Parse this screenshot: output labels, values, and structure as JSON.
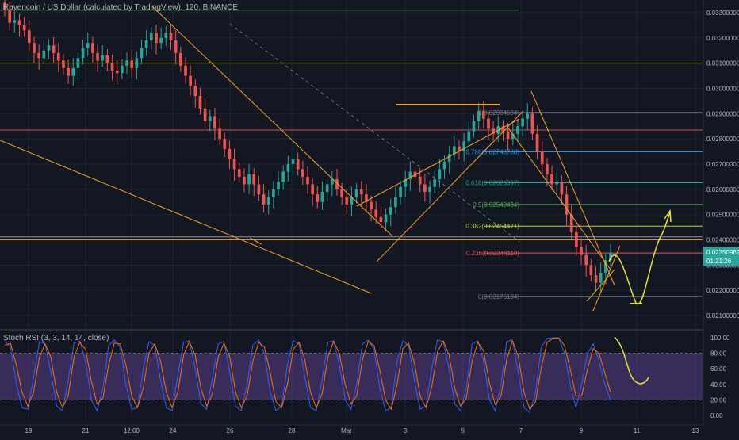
{
  "title": "Ravencoin / US Dollar (calculated by TradingView), 120, BINANCE",
  "rsi_title": "Stoch RSI (3, 3, 14, 14, close)",
  "colors": {
    "bg": "#131722",
    "grid": "#1f2431",
    "axis_text": "#b2b5be",
    "up": "#26a69a",
    "down": "#ef5350",
    "trend": "#f7a21b",
    "drawing": "#e7e332",
    "price_badge": "#26a69a",
    "rsi_band": "#7e57c2",
    "rsi_k": "#2962ff",
    "rsi_d": "#ff6d00"
  },
  "chart_data": [
    {
      "type": "candlestick",
      "x_ticks": [
        "19",
        "21",
        "12:00",
        "24",
        "26",
        "28",
        "Mar",
        "3",
        "5",
        "7",
        "9",
        "11",
        "13"
      ],
      "y_ticks": [
        "0.03300000",
        "0.03200000",
        "0.03100000",
        "0.03000000",
        "0.02900000",
        "0.02800000",
        "0.02700000",
        "0.02600000",
        "0.02500000",
        "0.02400000",
        "0.02300000",
        "0.02200000",
        "0.02100000"
      ],
      "y_tick_values": [
        0.033,
        0.032,
        0.031,
        0.03,
        0.029,
        0.028,
        0.027,
        0.026,
        0.025,
        0.024,
        0.023,
        0.022,
        0.021
      ],
      "ylim": [
        0.0205,
        0.0335
      ],
      "last_price": "0.02350962",
      "countdown": "01:21:26",
      "fib_levels": [
        {
          "ratio": "1",
          "label": "1(0.02904684)",
          "price": 0.02904684
        },
        {
          "ratio": "0.786",
          "label": "0.786(0.02748788)",
          "price": 0.02748788
        },
        {
          "ratio": "0.618",
          "label": "0.618(0.02626397)",
          "price": 0.02626397
        },
        {
          "ratio": "0.5",
          "label": "0.5(0.02540434)",
          "price": 0.02540434
        },
        {
          "ratio": "0.382",
          "label": "0.382(0.02454471)",
          "price": 0.02454471
        },
        {
          "ratio": "0.236",
          "label": "0.236(0.02348110)",
          "price": 0.0234811
        },
        {
          "ratio": "0",
          "label": "0(0.02176184)",
          "price": 0.02176184
        }
      ],
      "horizontal_levels": [
        0.0331,
        0.031,
        0.02835,
        0.02412,
        0.024
      ],
      "series_close": [
        0.0331,
        0.0326,
        0.0327,
        0.0325,
        0.0323,
        0.0318,
        0.0314,
        0.0312,
        0.0315,
        0.0317,
        0.0314,
        0.0311,
        0.0308,
        0.0305,
        0.0308,
        0.0312,
        0.0316,
        0.0318,
        0.0314,
        0.0311,
        0.0313,
        0.031,
        0.0307,
        0.0306,
        0.0309,
        0.0311,
        0.0308,
        0.0312,
        0.0316,
        0.0319,
        0.0322,
        0.0318,
        0.032,
        0.0322,
        0.0319,
        0.0314,
        0.0309,
        0.0305,
        0.0301,
        0.0297,
        0.0292,
        0.0287,
        0.0289,
        0.0284,
        0.028,
        0.0276,
        0.0272,
        0.0268,
        0.0265,
        0.0262,
        0.0266,
        0.0262,
        0.0258,
        0.0254,
        0.0257,
        0.026,
        0.0263,
        0.0267,
        0.027,
        0.0272,
        0.0268,
        0.0265,
        0.0262,
        0.0258,
        0.0255,
        0.0259,
        0.0262,
        0.0264,
        0.026,
        0.0257,
        0.0254,
        0.0257,
        0.026,
        0.0258,
        0.0255,
        0.0252,
        0.0249,
        0.0247,
        0.025,
        0.0253,
        0.0257,
        0.0261,
        0.0264,
        0.0267,
        0.0265,
        0.0262,
        0.0259,
        0.0261,
        0.0264,
        0.0268,
        0.0271,
        0.0274,
        0.0277,
        0.0275,
        0.0279,
        0.0283,
        0.0287,
        0.0291,
        0.0288,
        0.0284,
        0.0282,
        0.0285,
        0.0283,
        0.028,
        0.0282,
        0.0285,
        0.0288,
        0.029,
        0.0282,
        0.0275,
        0.027,
        0.0266,
        0.0262,
        0.0263,
        0.0258,
        0.025,
        0.0243,
        0.0237,
        0.0234,
        0.023,
        0.0226,
        0.0223,
        0.0227,
        0.0232,
        0.0235
      ]
    },
    {
      "type": "line",
      "name": "Stoch RSI",
      "y_ticks": [
        "100.00",
        "80.00",
        "60.00",
        "40.00",
        "20.00",
        "0.00"
      ],
      "y_tick_values": [
        100,
        80,
        60,
        40,
        20,
        0
      ],
      "ylim": [
        0,
        100
      ],
      "band": [
        20,
        80
      ],
      "k_values": [
        96,
        88,
        40,
        10,
        8,
        50,
        95,
        92,
        55,
        12,
        6,
        45,
        93,
        96,
        70,
        20,
        6,
        35,
        90,
        97,
        88,
        40,
        8,
        10,
        60,
        95,
        90,
        45,
        10,
        6,
        52,
        94,
        96,
        60,
        15,
        8,
        48,
        92,
        95,
        55,
        12,
        6,
        40,
        90,
        97,
        80,
        30,
        6,
        12,
        65,
        96,
        92,
        50,
        10,
        6,
        46,
        94,
        96,
        65,
        20,
        8,
        40,
        92,
        97,
        85,
        35,
        6,
        10,
        70,
        96,
        90,
        45,
        8,
        12,
        60,
        97,
        95,
        60,
        15,
        6,
        35,
        92,
        96,
        70,
        20,
        6,
        40,
        95,
        97,
        55,
        10,
        4,
        30,
        88,
        99,
        100,
        100,
        80,
        40,
        10,
        40,
        80,
        92,
        70,
        40,
        20
      ],
      "d_values": [
        90,
        93,
        65,
        30,
        12,
        30,
        75,
        92,
        75,
        30,
        10,
        25,
        75,
        94,
        85,
        45,
        15,
        22,
        65,
        93,
        92,
        65,
        25,
        10,
        35,
        80,
        92,
        70,
        30,
        10,
        30,
        78,
        95,
        78,
        35,
        12,
        28,
        75,
        93,
        75,
        30,
        10,
        25,
        70,
        94,
        88,
        55,
        18,
        10,
        40,
        85,
        94,
        72,
        30,
        10,
        28,
        75,
        95,
        80,
        40,
        15,
        25,
        72,
        95,
        90,
        58,
        20,
        8,
        40,
        86,
        93,
        68,
        25,
        10,
        36,
        82,
        96,
        78,
        35,
        12,
        22,
        70,
        94,
        83,
        42,
        14,
        25,
        72,
        96,
        76,
        30,
        8,
        18,
        62,
        94,
        99,
        100,
        90,
        60,
        25,
        25,
        60,
        86,
        80,
        55,
        30
      ]
    }
  ]
}
